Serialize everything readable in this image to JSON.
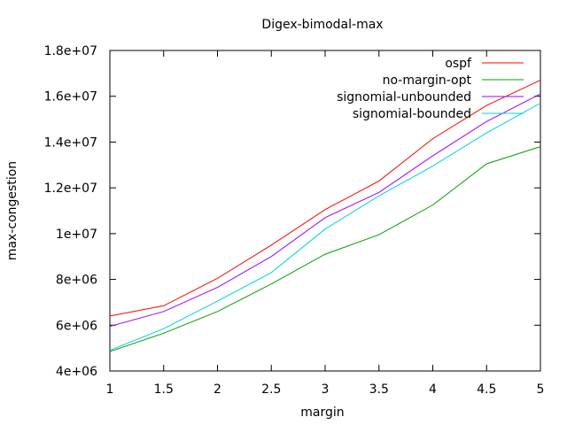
{
  "chart_data": {
    "type": "line",
    "title": "Digex-bimodal-max",
    "xlabel": "margin",
    "ylabel": "max-congestion",
    "xlim": [
      1,
      5
    ],
    "ylim": [
      4000000,
      18000000
    ],
    "xticks": [
      1,
      1.5,
      2,
      2.5,
      3,
      3.5,
      4,
      4.5,
      5
    ],
    "xtick_labels": [
      "1",
      "1.5",
      "2",
      "2.5",
      "3",
      "3.5",
      "4",
      "4.5",
      "5"
    ],
    "yticks": [
      4000000,
      6000000,
      8000000,
      10000000,
      12000000,
      14000000,
      16000000,
      18000000
    ],
    "ytick_labels": [
      "4e+06",
      "6e+06",
      "8e+06",
      "1e+07",
      "1.2e+07",
      "1.4e+07",
      "1.6e+07",
      "1.8e+07"
    ],
    "legend_position": "top-right",
    "grid": false,
    "x": [
      1,
      1.5,
      2,
      2.5,
      3,
      3.5,
      4,
      4.5,
      5
    ],
    "series": [
      {
        "name": "ospf",
        "color": "#ff0000",
        "values": [
          6400000,
          6850000,
          8050000,
          9500000,
          11050000,
          12300000,
          14150000,
          15600000,
          16700000
        ]
      },
      {
        "name": "no-margin-opt",
        "color": "#00a000",
        "values": [
          4850000,
          5650000,
          6600000,
          7800000,
          9100000,
          9950000,
          11250000,
          13050000,
          13800000
        ]
      },
      {
        "name": "signomial-unbounded",
        "color": "#a000ff",
        "values": [
          5950000,
          6600000,
          7650000,
          9000000,
          10700000,
          11800000,
          13400000,
          14900000,
          16100000
        ]
      },
      {
        "name": "signomial-bounded",
        "color": "#00d0e0",
        "values": [
          4900000,
          5850000,
          7050000,
          8300000,
          10200000,
          11650000,
          12950000,
          14400000,
          15700000
        ]
      }
    ]
  }
}
